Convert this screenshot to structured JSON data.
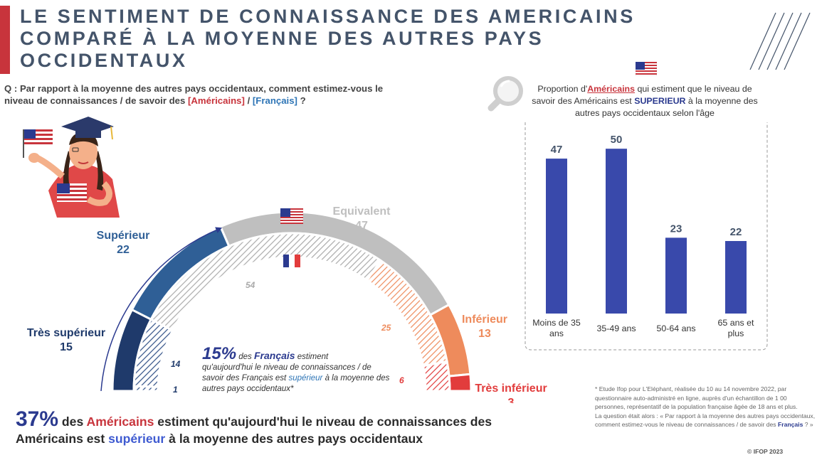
{
  "title": {
    "line1": "LE SENTIMENT DE CONNAISSANCE DES AMERICAINS",
    "line2": "COMPARÉ À LA MOYENNE DES AUTRES PAYS",
    "line3": "OCCIDENTAUX"
  },
  "question": {
    "prefix": "Q : Par rapport à la moyenne des autres pays occidentaux, comment estimez-vous le niveau de connaissances / de savoir des ",
    "americains": "[Américains]",
    "sep": " / ",
    "francais": "[Français]",
    "suffix": " ?"
  },
  "colors": {
    "accent": "#c8343c",
    "tres_superieur": "#1f3a6b",
    "superieur": "#2f5f96",
    "equivalent": "#bfbfbf",
    "inferieur": "#ee8b5c",
    "tres_inferieur": "#e23c3c",
    "bars": "#3949ab"
  },
  "chart_data": [
    {
      "type": "gauge",
      "categories": [
        "Très supérieur",
        "Supérieur",
        "Equivalent",
        "Inférieur",
        "Très inférieur"
      ],
      "series": [
        {
          "values": [
            15,
            22,
            47,
            13,
            3
          ]
        },
        {
          "values": [
            1,
            14,
            54,
            25,
            6
          ]
        }
      ]
    },
    {
      "type": "bar",
      "title": "Proportion d'Américains qui estiment que le niveau de savoir des Américains est SUPERIEUR à la moyenne des autres pays occidentaux selon l'âge",
      "categories": [
        "Moins de 35 ans",
        "35-49 ans",
        "50-64 ans",
        "65 ans et plus"
      ],
      "values": [
        47,
        50,
        23,
        22
      ],
      "ylim": [
        0,
        55
      ]
    }
  ],
  "gauge_labels": {
    "tres_superieur": {
      "name": "Très supérieur",
      "value": "15"
    },
    "superieur": {
      "name": "Supérieur",
      "value": "22"
    },
    "equivalent": {
      "name": "Equivalent",
      "value": "47"
    },
    "inferieur": {
      "name": "Inférieur",
      "value": "13"
    },
    "tres_inferieur": {
      "name": "Très inférieur",
      "value": "3"
    },
    "fr_values": [
      "1",
      "14",
      "54",
      "25",
      "6"
    ]
  },
  "callout": {
    "percent": "15%",
    "t1": " des ",
    "francais": "Français",
    "t2": " estiment",
    "t3": "qu'aujourd'hui le niveau de connaissances / de savoir des Français est ",
    "superieur": "supérieur",
    "t4": " à la moyenne des autres pays occidentaux*"
  },
  "bottom": {
    "percent": "37%",
    "t1": " des ",
    "americains": "Américains",
    "t2": " estiment qu'aujourd'hui le niveau de connaissances des Américains est ",
    "superieur": "supérieur",
    "t3": " à la moyenne des autres pays occidentaux"
  },
  "right_panel": {
    "t1": "Proportion d'",
    "americains": "Américains",
    "t2": " qui estiment que le niveau de savoir des Américains est ",
    "superieur": "SUPERIEUR",
    "t3": " à la moyenne des autres pays occidentaux selon l'âge"
  },
  "footnote": {
    "t1": "* Etude Ifop pour L'Eléphant, réalisée du 10 au 14 novembre 2022, par questionnaire auto-administré en ligne, auprès d'un échantillon de 1 00 personnes, représentatif de la population française âgée de 18 ans et plus.",
    "t2": "La question était alors : « Par rapport à la moyenne des autres pays occidentaux, comment estimez-vous le niveau de connaissances / de savoir des ",
    "francais": "Français",
    "t3": " ? »"
  },
  "copyright": "© IFOP 2023",
  "icons": [
    "us-flag-icon",
    "french-flag-icon",
    "magnifier-icon",
    "graduate-woman-icon"
  ]
}
